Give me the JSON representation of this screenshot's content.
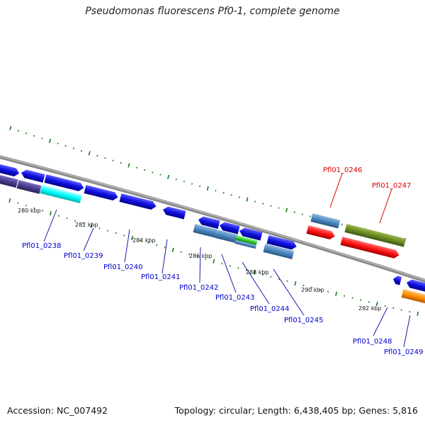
{
  "title": "Pseudomonas fluorescens Pf0-1, complete genome",
  "footer": {
    "accession": "Accession: NC_007492",
    "topology": "Topology: circular; Length: 6,438,405 bp; Genes: 5,816"
  },
  "scale_labels": [
    "280 kbp",
    "282 kbp",
    "284 kbp",
    "286 kbp",
    "288 kbp",
    "290 kbp",
    "292 kbp"
  ],
  "genes": [
    {
      "id": "Pfl01_0238",
      "color": "#0000cc"
    },
    {
      "id": "Pfl01_0239",
      "color": "#0000cc"
    },
    {
      "id": "Pfl01_0240",
      "color": "#0000cc"
    },
    {
      "id": "Pfl01_0241",
      "color": "#0000cc"
    },
    {
      "id": "Pfl01_0242",
      "color": "#0000cc"
    },
    {
      "id": "Pfl01_0243",
      "color": "#0000cc"
    },
    {
      "id": "Pfl01_0244",
      "color": "#0000cc"
    },
    {
      "id": "Pfl01_0245",
      "color": "#0000cc"
    },
    {
      "id": "Pfl01_0246",
      "color": "#dd0000"
    },
    {
      "id": "Pfl01_0247",
      "color": "#dd0000"
    },
    {
      "id": "Pfl01_0248",
      "color": "#0000cc"
    },
    {
      "id": "Pfl01_0249",
      "color": "#0000cc"
    }
  ],
  "colors": {
    "blue": "#1010e0",
    "steel_blue": "#4a86c0",
    "purple": "#4b3d8f",
    "cyan": "#00ffff",
    "olive": "#6b8c23",
    "red": "#ff1010",
    "green": "#33cc33",
    "orange": "#ff8c00",
    "tick_green": "#1b7a1b",
    "backbone": "#888888"
  }
}
